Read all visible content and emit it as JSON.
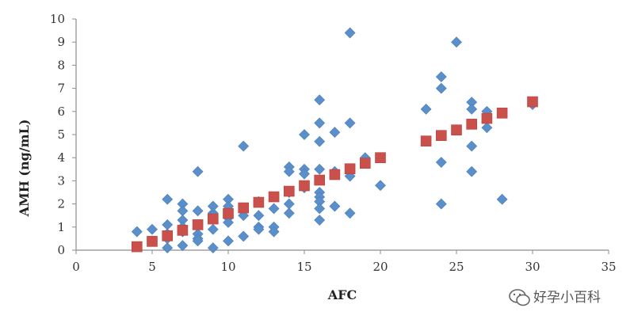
{
  "chart_data": {
    "type": "scatter",
    "title": "",
    "xlabel": "AFC",
    "ylabel": "AMH (ng/mL)",
    "xlim": [
      0,
      35
    ],
    "ylim": [
      0,
      10
    ],
    "xticks": [
      0,
      5,
      10,
      15,
      20,
      25,
      30,
      35
    ],
    "yticks": [
      0,
      1,
      2,
      3,
      4,
      5,
      6,
      7,
      8,
      9,
      10
    ],
    "grid": false,
    "legend": "none",
    "colors": {
      "observed": "#5b8fc9",
      "fitted": "#c9504b"
    },
    "series": [
      {
        "name": "observed",
        "marker": "diamond",
        "points": [
          [
            4,
            0.8
          ],
          [
            5,
            0.9
          ],
          [
            5,
            0.4
          ],
          [
            6,
            2.2
          ],
          [
            6,
            1.1
          ],
          [
            6,
            0.7
          ],
          [
            6,
            0.5
          ],
          [
            6,
            0.1
          ],
          [
            7,
            2.0
          ],
          [
            7,
            1.7
          ],
          [
            7,
            1.3
          ],
          [
            7,
            1.0
          ],
          [
            7,
            0.8
          ],
          [
            7,
            0.2
          ],
          [
            8,
            3.4
          ],
          [
            8,
            1.7
          ],
          [
            8,
            1.1
          ],
          [
            8,
            0.7
          ],
          [
            8,
            0.5
          ],
          [
            8,
            0.4
          ],
          [
            9,
            1.9
          ],
          [
            9,
            1.6
          ],
          [
            9,
            1.5
          ],
          [
            9,
            0.9
          ],
          [
            9,
            0.1
          ],
          [
            10,
            2.2
          ],
          [
            10,
            1.9
          ],
          [
            10,
            1.4
          ],
          [
            10,
            1.2
          ],
          [
            10,
            0.4
          ],
          [
            11,
            4.5
          ],
          [
            11,
            1.8
          ],
          [
            11,
            1.5
          ],
          [
            11,
            0.6
          ],
          [
            12,
            2.1
          ],
          [
            12,
            1.5
          ],
          [
            12,
            1.0
          ],
          [
            12,
            0.9
          ],
          [
            13,
            1.8
          ],
          [
            13,
            1.0
          ],
          [
            13,
            0.8
          ],
          [
            14,
            3.6
          ],
          [
            14,
            3.4
          ],
          [
            14,
            2.5
          ],
          [
            14,
            2.0
          ],
          [
            14,
            1.6
          ],
          [
            15,
            5.0
          ],
          [
            15,
            3.5
          ],
          [
            15,
            3.3
          ],
          [
            15,
            2.7
          ],
          [
            16,
            6.5
          ],
          [
            16,
            5.5
          ],
          [
            16,
            4.7
          ],
          [
            16,
            3.5
          ],
          [
            16,
            2.5
          ],
          [
            16,
            2.3
          ],
          [
            16,
            2.1
          ],
          [
            16,
            1.8
          ],
          [
            16,
            1.3
          ],
          [
            17,
            5.1
          ],
          [
            17,
            3.4
          ],
          [
            17,
            1.9
          ],
          [
            18,
            9.4
          ],
          [
            18,
            5.5
          ],
          [
            18,
            3.2
          ],
          [
            18,
            1.6
          ],
          [
            19,
            4.0
          ],
          [
            20,
            2.8
          ],
          [
            23,
            6.1
          ],
          [
            24,
            7.5
          ],
          [
            24,
            7.0
          ],
          [
            24,
            3.8
          ],
          [
            24,
            2.0
          ],
          [
            25,
            9.0
          ],
          [
            26,
            6.4
          ],
          [
            26,
            6.1
          ],
          [
            26,
            4.5
          ],
          [
            26,
            3.4
          ],
          [
            27,
            6.0
          ],
          [
            27,
            5.3
          ],
          [
            28,
            2.2
          ],
          [
            30,
            6.3
          ]
        ]
      },
      {
        "name": "fitted",
        "marker": "square",
        "points": [
          [
            4,
            0.15
          ],
          [
            5,
            0.38
          ],
          [
            6,
            0.62
          ],
          [
            7,
            0.86
          ],
          [
            8,
            1.1
          ],
          [
            9,
            1.35
          ],
          [
            10,
            1.59
          ],
          [
            11,
            1.83
          ],
          [
            12,
            2.07
          ],
          [
            13,
            2.31
          ],
          [
            14,
            2.55
          ],
          [
            15,
            2.79
          ],
          [
            16,
            3.03
          ],
          [
            17,
            3.27
          ],
          [
            18,
            3.52
          ],
          [
            19,
            3.76
          ],
          [
            20,
            4.0
          ],
          [
            23,
            4.72
          ],
          [
            24,
            4.96
          ],
          [
            25,
            5.2
          ],
          [
            26,
            5.45
          ],
          [
            27,
            5.7
          ],
          [
            28,
            5.93
          ],
          [
            30,
            6.42
          ]
        ]
      }
    ]
  },
  "watermark": {
    "text": "好孕小百科",
    "icon": "wechat-icon"
  }
}
